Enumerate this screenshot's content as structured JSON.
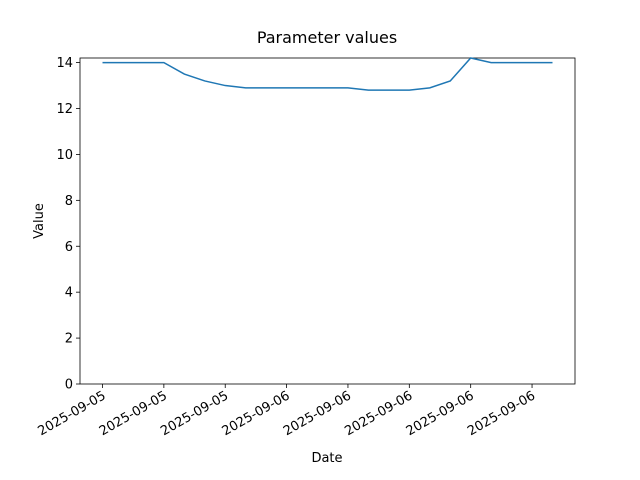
{
  "chart_data": {
    "type": "line",
    "title": "Parameter values",
    "x_label": "Date",
    "y_label": "Value",
    "categories": [
      "2025-09-05",
      null,
      null,
      "2025-09-05",
      null,
      null,
      "2025-09-05",
      null,
      null,
      "2025-09-06",
      null,
      null,
      "2025-09-06",
      null,
      null,
      "2025-09-06",
      null,
      null,
      "2025-09-06",
      null,
      null,
      "2025-09-06",
      null
    ],
    "values": [
      14,
      14,
      14,
      14,
      13.5,
      13.2,
      13.0,
      12.9,
      12.9,
      12.9,
      12.9,
      12.9,
      12.9,
      12.8,
      12.8,
      12.8,
      12.9,
      13.2,
      14.2,
      14,
      14,
      14,
      14
    ],
    "color": "#1f77b4",
    "ylim": [
      0,
      14.2
    ],
    "yticks": [
      0,
      2,
      4,
      6,
      8,
      10,
      12,
      14
    ],
    "grid": false
  }
}
